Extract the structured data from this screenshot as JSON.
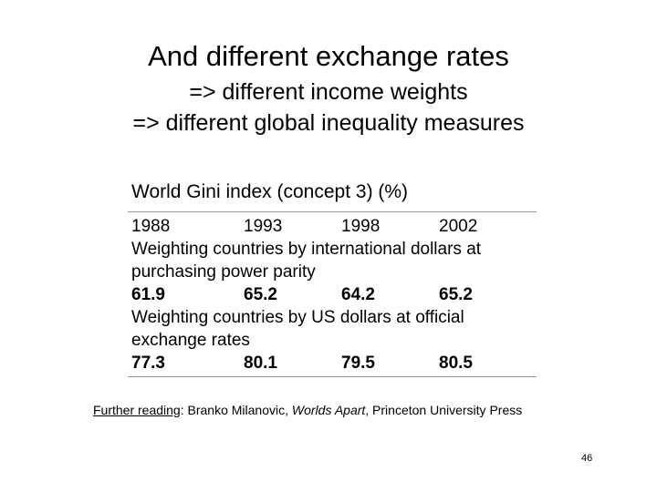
{
  "slide": {
    "title": "And different exchange rates",
    "subtitle_line1": "=> different income weights",
    "subtitle_line2": "=> different global inequality measures"
  },
  "table": {
    "title": "World Gini index (concept 3) (%)",
    "years": [
      "1988",
      "1993",
      "1998",
      "2002"
    ],
    "sections": [
      {
        "label_lines": [
          "Weighting countries by international dollars at",
          "purchasing power parity"
        ],
        "values": [
          "61.9",
          "65.2",
          "64.2",
          "65.2"
        ]
      },
      {
        "label_lines": [
          "Weighting countries by US dollars at official",
          "exchange rates"
        ],
        "values": [
          "77.3",
          "80.1",
          "79.5",
          "80.5"
        ]
      }
    ]
  },
  "footer": {
    "further_label": "Further reading",
    "colon": ": ",
    "author": "Branko Milanovic, ",
    "book": "Worlds Apart",
    "publisher": ", Princeton University Press",
    "page_number": "46"
  }
}
